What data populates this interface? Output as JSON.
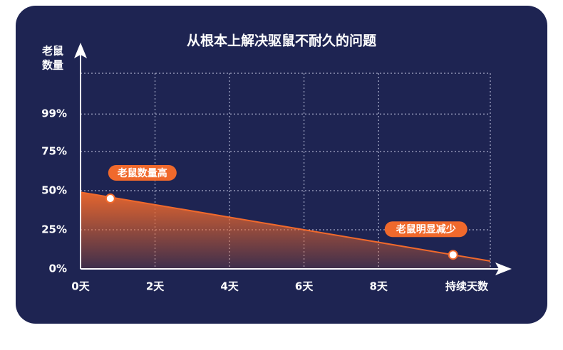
{
  "chart_data": {
    "type": "line",
    "title": "从根本上解决驱鼠不耐久的问题",
    "y_label": [
      "老鼠",
      "数量"
    ],
    "x_label": "持续天数",
    "xlim": [
      0,
      11
    ],
    "ylim": [
      0,
      125
    ],
    "xticks": [
      {
        "value": 0,
        "label": "0天"
      },
      {
        "value": 2,
        "label": "2天"
      },
      {
        "value": 4,
        "label": "4天"
      },
      {
        "value": 6,
        "label": "6天"
      },
      {
        "value": 8,
        "label": "8天"
      }
    ],
    "yticks": [
      {
        "value": 0,
        "label": "0%"
      },
      {
        "value": 25,
        "label": "25%"
      },
      {
        "value": 50,
        "label": "50%"
      },
      {
        "value": 75,
        "label": "75%"
      },
      {
        "value": 99,
        "label": "99%"
      }
    ],
    "grid": true,
    "series": [
      {
        "color": "#f0692c",
        "x": [
          0,
          11
        ],
        "values": [
          49,
          5
        ]
      }
    ],
    "points": {
      "x": [
        0.8,
        10
      ],
      "values": [
        45,
        9
      ],
      "labels": [
        "老鼠数量高",
        "老鼠明显减少"
      ]
    }
  }
}
